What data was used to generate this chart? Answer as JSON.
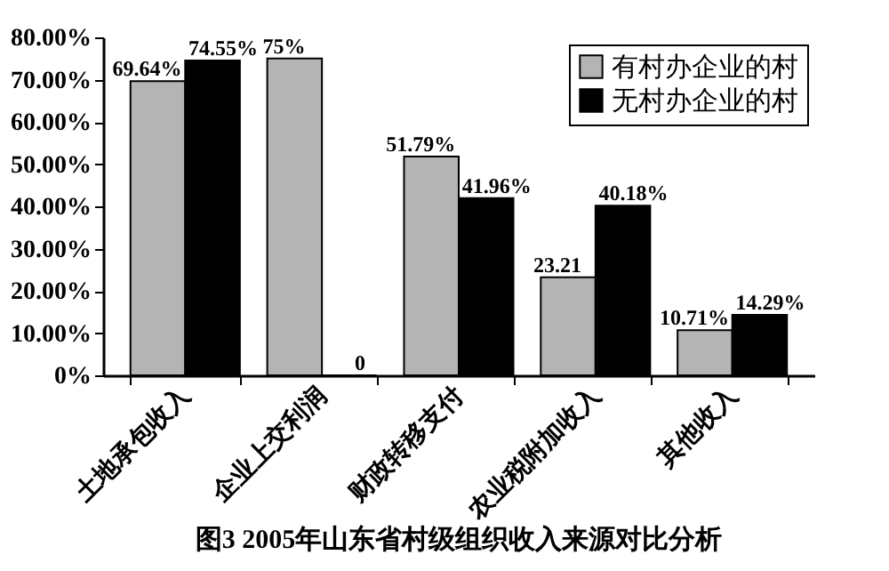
{
  "chart_data": {
    "type": "bar",
    "title": "图3 2005年山东省村级组织收入来源对比分析",
    "categories": [
      "土地承包收入",
      "企业上交利润",
      "财政转移支付",
      "农业税附加收入",
      "其他收入"
    ],
    "series": [
      {
        "name": "有村办企业的村",
        "color": "#b4b4b4",
        "values": [
          69.64,
          75,
          51.79,
          23.21,
          10.71
        ],
        "value_labels": [
          "69.64%",
          "75%",
          "51.79%",
          "23.21",
          "10.71%"
        ]
      },
      {
        "name": "无村办企业的村",
        "color": "#000000",
        "values": [
          74.55,
          0,
          41.96,
          40.18,
          14.29
        ],
        "value_labels": [
          "74.55%",
          "0",
          "41.96%",
          "40.18%",
          "14.29%"
        ]
      }
    ],
    "ylim": [
      0,
      80
    ],
    "yticks": [
      {
        "value": 0,
        "label": "0%"
      },
      {
        "value": 10,
        "label": "10.00%"
      },
      {
        "value": 20,
        "label": "20.00%"
      },
      {
        "value": 30,
        "label": "30.00%"
      },
      {
        "value": 40,
        "label": "40.00%"
      },
      {
        "value": 50,
        "label": "50.00%"
      },
      {
        "value": 60,
        "label": "60.00%"
      },
      {
        "value": 70,
        "label": "70.00%"
      },
      {
        "value": 80,
        "label": "80.00%"
      }
    ],
    "grid": false,
    "legend": "top right"
  }
}
